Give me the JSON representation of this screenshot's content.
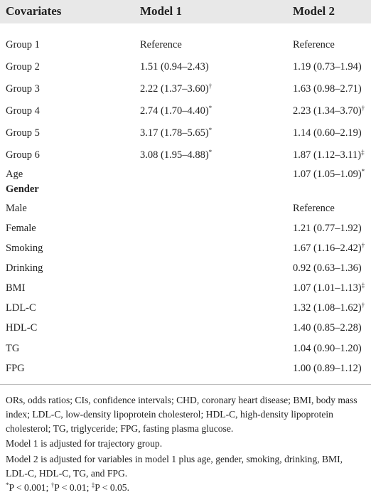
{
  "table": {
    "header": [
      "Covariates",
      "Model 1",
      "Model 2"
    ],
    "rows": [
      {
        "label": "Group 1",
        "cells": [
          {
            "text": "Reference"
          },
          {
            "text": "Reference"
          }
        ]
      },
      {
        "label": "Group 2",
        "cells": [
          {
            "text": "1.51 (0.94–2.43)"
          },
          {
            "text": "1.19 (0.73–1.94)"
          }
        ]
      },
      {
        "label": "Group 3",
        "cells": [
          {
            "text": "2.22 (1.37–3.60)",
            "sup": "†"
          },
          {
            "text": "1.63 (0.98–2.71)"
          }
        ]
      },
      {
        "label": "Group 4",
        "cells": [
          {
            "text": "2.74 (1.70–4.40)",
            "sup": "*"
          },
          {
            "text": "2.23 (1.34–3.70)",
            "sup": "†"
          }
        ]
      },
      {
        "label": "Group 5",
        "cells": [
          {
            "text": "3.17 (1.78–5.65)",
            "sup": "*"
          },
          {
            "text": "1.14 (0.60–2.19)"
          }
        ]
      },
      {
        "label": "Group 6",
        "cells": [
          {
            "text": "3.08 (1.95–4.88)",
            "sup": "*"
          },
          {
            "text": "1.87 (1.12–3.11)",
            "sup": "‡"
          }
        ]
      },
      {
        "label": "Age",
        "cells": [
          null,
          {
            "text": "1.07 (1.05–1.09)",
            "sup": "*"
          }
        ]
      },
      {
        "label": "Gender",
        "heading": true,
        "cells": [
          null,
          null
        ]
      },
      {
        "label": "Male",
        "cells": [
          null,
          {
            "text": "Reference"
          }
        ]
      },
      {
        "label": "Female",
        "cells": [
          null,
          {
            "text": "1.21 (0.77–1.92)"
          }
        ]
      },
      {
        "label": "Smoking",
        "cells": [
          null,
          {
            "text": "1.67 (1.16–2.42)",
            "sup": "†"
          }
        ]
      },
      {
        "label": "Drinking",
        "cells": [
          null,
          {
            "text": "0.92 (0.63–1.36)"
          }
        ]
      },
      {
        "label": "BMI",
        "cells": [
          null,
          {
            "text": "1.07 (1.01–1.13)",
            "sup": "‡"
          }
        ]
      },
      {
        "label": "LDL-C",
        "cells": [
          null,
          {
            "text": "1.32 (1.08–1.62)",
            "sup": "†"
          }
        ]
      },
      {
        "label": "HDL-C",
        "cells": [
          null,
          {
            "text": "1.40 (0.85–2.28)"
          }
        ]
      },
      {
        "label": "TG",
        "cells": [
          null,
          {
            "text": "1.04 (0.90–1.20)"
          }
        ]
      },
      {
        "label": "FPG",
        "cells": [
          null,
          {
            "text": "1.00 (0.89–1.12)"
          }
        ]
      }
    ]
  },
  "notes": [
    "ORs, odds ratios; CIs, confidence intervals; CHD, coronary heart disease; BMI, body mass index; LDL-C, low-density lipoprotein cholesterol; HDL-C, high-density lipoprotein cholesterol; TG, triglyceride; FPG, fasting plasma glucose.",
    "Model 1 is adjusted for trajectory group.",
    "Model 2 is adjusted for variables in model 1 plus age, gender, smoking, drinking, BMI, LDL-C, HDL-C, TG, and FPG."
  ],
  "significance": [
    {
      "sup": "*",
      "text": "P < 0.001;"
    },
    {
      "sup": "†",
      "text": "P < 0.01;"
    },
    {
      "sup": "‡",
      "text": "P < 0.05."
    }
  ]
}
